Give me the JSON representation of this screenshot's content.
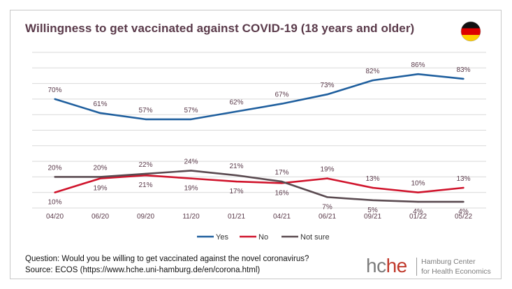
{
  "chart_data": {
    "type": "line",
    "title": "Willingness to get vaccinated against COVID-19 (18 years and older)",
    "categories": [
      "04/20",
      "06/20",
      "09/20",
      "11/20",
      "01/21",
      "04/21",
      "06/21",
      "09/21",
      "01/22",
      "05/22"
    ],
    "ylim": [
      0,
      100
    ],
    "grid": true,
    "legend_position": "bottom",
    "series": [
      {
        "name": "Yes",
        "color": "#1f5f9e",
        "values": [
          70,
          61,
          57,
          57,
          62,
          67,
          73,
          82,
          86,
          83
        ],
        "labels": [
          "70%",
          "61%",
          "57%",
          "57%",
          "62%",
          "67%",
          "73%",
          "82%",
          "86%",
          "83%"
        ]
      },
      {
        "name": "No",
        "color": "#d0142c",
        "values": [
          10,
          19,
          21,
          19,
          17,
          16,
          19,
          13,
          10,
          13
        ],
        "labels": [
          "10%",
          "19%",
          "21%",
          "19%",
          "17%",
          "16%",
          "19%",
          "13%",
          "10%",
          "13%"
        ]
      },
      {
        "name": "Not sure",
        "color": "#5a4a50",
        "values": [
          20,
          20,
          22,
          24,
          21,
          17,
          7,
          5,
          4,
          4
        ],
        "labels": [
          "20%",
          "20%",
          "22%",
          "24%",
          "21%",
          "17%",
          "7%",
          "5%",
          "4%",
          "4%"
        ]
      }
    ]
  },
  "flag_icon": "germany-flag-icon",
  "footnote": {
    "question": "Question: Would you be willing to get vaccinated against the novel coronavirus?",
    "source": "Source: ECOS (https://www.hche.uni-hamburg.de/en/corona.html)"
  },
  "logo": {
    "mark_part1": "hc",
    "mark_part2": "he",
    "line1": "Hamburg Center",
    "line2": "for Health Economics"
  }
}
